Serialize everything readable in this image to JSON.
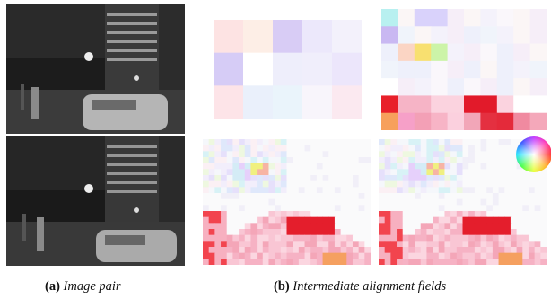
{
  "figure": {
    "captions": {
      "a": {
        "label": "(a)",
        "text": "Image pair"
      },
      "b": {
        "label": "(b)",
        "text": "Intermediate alignment fields"
      }
    },
    "image_pair": [
      "image-top",
      "image-bottom"
    ],
    "alignment_fields": [
      "field-coarse-level",
      "field-mid-level",
      "field-fine-level-1",
      "field-fine-level-2"
    ],
    "color_wheel": "flow-direction-legend-icon"
  }
}
